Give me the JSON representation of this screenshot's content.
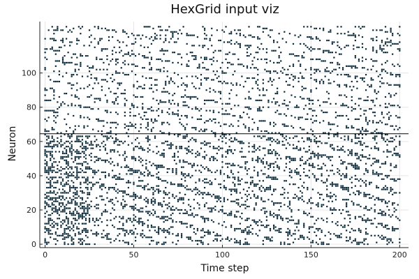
{
  "chart_data": {
    "type": "scatter",
    "title": "HexGrid input viz",
    "xlabel": "Time step",
    "ylabel": "Neuron",
    "xlim": [
      -3,
      205
    ],
    "ylim": [
      -2,
      130
    ],
    "xticks": [
      0,
      50,
      100,
      150,
      200
    ],
    "yticks": [
      0,
      20,
      40,
      60,
      80,
      100
    ],
    "grid": true,
    "legend": "none",
    "hline_y": 64.5,
    "marker_color": "#0b2a3a",
    "grid_color": "#e6e6e6",
    "spike_description": "Each point marks a spike for a neuron at a time step; 128 neurons over 200 steps. Lower 64 neurons show denser, longer spike trains early (t<25) forming diagonal patterns; upper 64 neurons show sparser diagonal patterns.",
    "n_neurons": 128,
    "n_steps": 200
  }
}
